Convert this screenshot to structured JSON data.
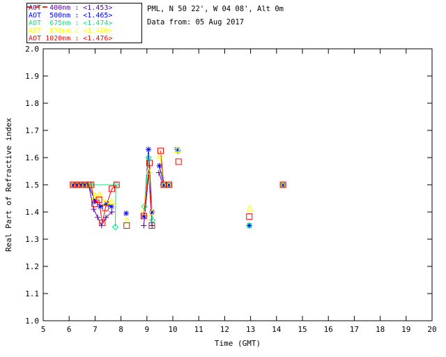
{
  "header": {
    "line1": "PML, N 50 22', W 04 08', Alt 0m",
    "line2": "Data from: 05 Aug 2017"
  },
  "chart_data": {
    "type": "line",
    "title": "",
    "xlabel": "Time (GMT)",
    "ylabel": "Real Part of Refractive index",
    "xlim": [
      5,
      20
    ],
    "ylim": [
      1.0,
      2.0
    ],
    "grid": false,
    "legend_position": "top-left-outside",
    "xtick_labels": [
      "5",
      "6",
      "7",
      "8",
      "9",
      "10",
      "11",
      "12",
      "13",
      "14",
      "15",
      "16",
      "17",
      "18",
      "19",
      "20"
    ],
    "ytick_labels": [
      "1.0",
      "1.1",
      "1.2",
      "1.3",
      "1.4",
      "1.5",
      "1.6",
      "1.7",
      "1.8",
      "1.9",
      "2.0"
    ],
    "axis_color": "#000000",
    "background_color": "#ffffff",
    "series": [
      {
        "name": "AOT  400nm",
        "legend_value": "<1.453>",
        "color": "#5500AA",
        "marker": "plus",
        "groups": [
          [
            [
              6.15,
              1.5
            ],
            [
              6.3,
              1.5
            ],
            [
              6.45,
              1.5
            ],
            [
              6.6,
              1.5
            ],
            [
              6.75,
              1.5
            ],
            [
              6.95,
              1.41
            ],
            [
              7.1,
              1.38
            ],
            [
              7.25,
              1.35
            ],
            [
              7.42,
              1.38
            ],
            [
              7.65,
              1.4
            ]
          ],
          [
            [
              8.88,
              1.35
            ],
            [
              9.07,
              1.54
            ],
            [
              9.2,
              1.35
            ]
          ],
          [
            [
              9.46,
              1.545
            ],
            [
              9.62,
              1.5
            ]
          ]
        ]
      },
      {
        "name": "AOT  500nm",
        "legend_value": "<1.465>",
        "color": "#0000FF",
        "marker": "asterisk",
        "groups": [
          [
            [
              6.15,
              1.5
            ],
            [
              6.3,
              1.5
            ],
            [
              6.45,
              1.5
            ],
            [
              6.6,
              1.5
            ],
            [
              6.75,
              1.5
            ],
            [
              7.0,
              1.44
            ],
            [
              7.2,
              1.42
            ],
            [
              7.45,
              1.43
            ],
            [
              7.63,
              1.42
            ]
          ],
          [
            [
              8.88,
              1.385
            ],
            [
              9.06,
              1.63
            ],
            [
              9.2,
              1.4
            ]
          ],
          [
            [
              9.48,
              1.57
            ],
            [
              9.65,
              1.5
            ],
            [
              9.85,
              1.5
            ]
          ],
          [
            [
              8.2,
              1.395
            ]
          ],
          [
            [
              10.17,
              1.63
            ]
          ],
          [
            [
              12.95,
              1.35
            ]
          ],
          [
            [
              14.25,
              1.5
            ]
          ]
        ]
      },
      {
        "name": "AOT  675nm",
        "legend_value": "<1.474>",
        "color": "#00E87A",
        "marker": "diamond",
        "groups": [
          [
            [
              6.15,
              1.5
            ],
            [
              6.3,
              1.5
            ],
            [
              6.45,
              1.5
            ],
            [
              6.6,
              1.5
            ],
            [
              6.75,
              1.5
            ],
            [
              6.85,
              1.5
            ],
            [
              7.8,
              1.5
            ],
            [
              7.78,
              1.345
            ]
          ],
          [
            [
              8.9,
              1.42
            ],
            [
              9.06,
              1.6
            ],
            [
              9.21,
              1.37
            ]
          ],
          [
            [
              9.65,
              1.5
            ],
            [
              9.85,
              1.5
            ]
          ],
          [
            [
              10.2,
              1.625
            ]
          ],
          [
            [
              12.95,
              1.35
            ]
          ],
          [
            [
              14.25,
              1.5
            ]
          ]
        ]
      },
      {
        "name": "AOT  870nm",
        "legend_value": "<1.480>",
        "color": "#FFFF00",
        "marker": "triangle",
        "groups": [
          [
            [
              6.15,
              1.5
            ],
            [
              6.3,
              1.5
            ],
            [
              6.45,
              1.5
            ],
            [
              6.6,
              1.5
            ],
            [
              6.75,
              1.5
            ],
            [
              7.0,
              1.46
            ],
            [
              7.18,
              1.465
            ],
            [
              7.4,
              1.435
            ],
            [
              7.63,
              1.44
            ]
          ],
          [
            [
              8.86,
              1.4
            ],
            [
              9.07,
              1.55
            ],
            [
              9.2,
              1.4
            ]
          ],
          [
            [
              9.5,
              1.61
            ],
            [
              9.65,
              1.5
            ],
            [
              9.85,
              1.5
            ]
          ],
          [
            [
              8.22,
              1.37
            ]
          ],
          [
            [
              10.18,
              1.63
            ]
          ],
          [
            [
              12.97,
              1.415
            ]
          ],
          [
            [
              14.25,
              1.5
            ]
          ]
        ]
      },
      {
        "name": "AOT 1020nm",
        "legend_value": "<1.476>",
        "color": "#FF0000",
        "marker": "square",
        "groups": [
          [
            [
              6.15,
              1.5
            ],
            [
              6.3,
              1.5
            ],
            [
              6.45,
              1.5
            ],
            [
              6.6,
              1.5
            ],
            [
              6.75,
              1.5
            ],
            [
              6.85,
              1.5
            ],
            [
              6.98,
              1.43
            ],
            [
              7.15,
              1.445
            ],
            [
              7.28,
              1.36
            ],
            [
              7.4,
              1.415
            ],
            [
              7.65,
              1.485
            ],
            [
              7.83,
              1.5
            ]
          ],
          [
            [
              8.88,
              1.385
            ],
            [
              9.1,
              1.58
            ],
            [
              9.19,
              1.35
            ]
          ],
          [
            [
              9.53,
              1.625
            ],
            [
              9.65,
              1.5
            ],
            [
              9.85,
              1.5
            ]
          ],
          [
            [
              8.22,
              1.35
            ]
          ],
          [
            [
              10.22,
              1.585
            ]
          ],
          [
            [
              12.95,
              1.383
            ]
          ],
          [
            [
              14.25,
              1.5
            ]
          ]
        ]
      }
    ]
  }
}
